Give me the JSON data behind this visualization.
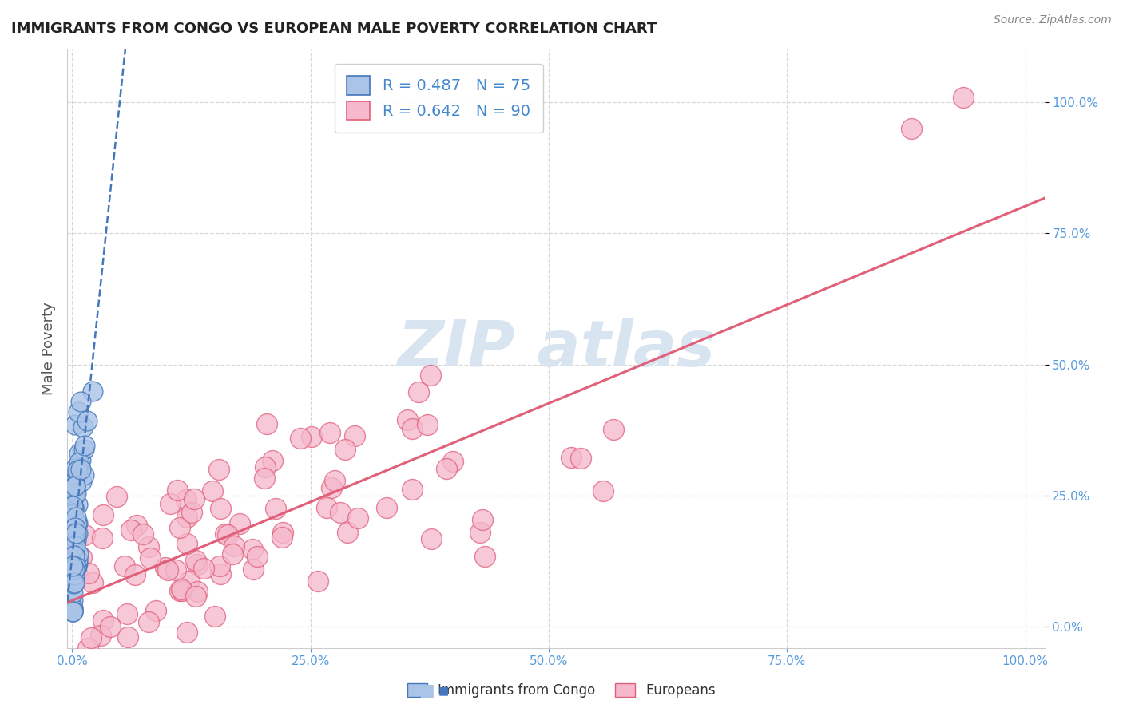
{
  "title": "IMMIGRANTS FROM CONGO VS EUROPEAN MALE POVERTY CORRELATION CHART",
  "source": "Source: ZipAtlas.com",
  "ylabel": "Male Poverty",
  "xlim": [
    -0.005,
    1.02
  ],
  "ylim": [
    -0.04,
    1.1
  ],
  "xticks": [
    0.0,
    0.25,
    0.5,
    0.75,
    1.0
  ],
  "xtick_labels": [
    "0.0%",
    "25.0%",
    "50.0%",
    "75.0%",
    "100.0%"
  ],
  "ytick_labels": [
    "0.0%",
    "25.0%",
    "50.0%",
    "75.0%",
    "100.0%"
  ],
  "yticks": [
    0.0,
    0.25,
    0.5,
    0.75,
    1.0
  ],
  "congo_face": "#aac4e8",
  "congo_edge": "#4477bb",
  "european_face": "#f5b8cc",
  "european_edge": "#e0607a",
  "regression_congo_color": "#4477bb",
  "regression_euro_color": "#e0607a",
  "legend_R_congo": "R = 0.487",
  "legend_N_congo": "N = 75",
  "legend_R_euro": "R = 0.642",
  "legend_N_euro": "N = 90",
  "background_color": "#ffffff",
  "grid_color": "#d8d8d8",
  "N_congo": 75,
  "N_euro": 90,
  "watermark_color": "#d8e4f0",
  "tick_color": "#5599dd",
  "title_color": "#222222",
  "ylabel_color": "#555555",
  "source_color": "#888888",
  "legend_text_color": "#4488cc"
}
